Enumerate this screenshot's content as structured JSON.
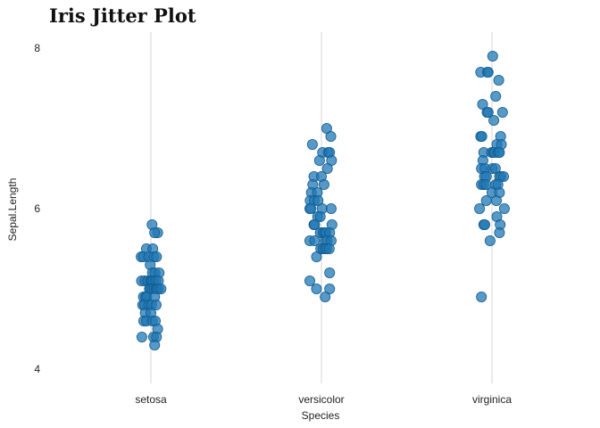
{
  "chart_data": {
    "type": "scatter",
    "subtype": "jitter",
    "title": "Iris Jitter Plot",
    "xlabel": "Species",
    "ylabel": "Sepal.Length",
    "categories": [
      "setosa",
      "versicolor",
      "virginica"
    ],
    "yticks": [
      4,
      6,
      8
    ],
    "ylim": [
      3.8,
      8.25
    ],
    "grid": {
      "vertical": true,
      "horizontal": false
    },
    "legend": "none",
    "point_color": "#1f77b4",
    "point_stroke": "#155d8f",
    "point_opacity": 0.75,
    "series": [
      {
        "category": "setosa",
        "values": [
          5.8,
          5.7,
          5.7,
          5.5,
          5.5,
          5.4,
          5.4,
          5.4,
          5.4,
          5.4,
          5.3,
          5.2,
          5.2,
          5.2,
          5.1,
          5.1,
          5.1,
          5.1,
          5.1,
          5.1,
          5.1,
          5.1,
          5.0,
          5.0,
          5.0,
          5.0,
          5.0,
          5.0,
          5.0,
          5.0,
          4.9,
          4.9,
          4.9,
          4.9,
          4.8,
          4.8,
          4.8,
          4.8,
          4.8,
          4.7,
          4.7,
          4.6,
          4.6,
          4.6,
          4.6,
          4.5,
          4.4,
          4.4,
          4.4,
          4.3
        ],
        "jitter": [
          0.03,
          0.18,
          0.1,
          -0.12,
          0.05,
          -0.26,
          -0.2,
          -0.06,
          0.08,
          0.15,
          -0.02,
          0.04,
          0.11,
          0.22,
          -0.25,
          -0.16,
          -0.08,
          0.0,
          0.02,
          0.06,
          0.13,
          0.2,
          -0.04,
          -0.01,
          0.03,
          0.09,
          0.14,
          0.16,
          0.2,
          0.27,
          -0.2,
          -0.14,
          -0.11,
          0.1,
          -0.22,
          -0.17,
          -0.06,
          0.02,
          0.14,
          -0.15,
          0.0,
          -0.19,
          -0.12,
          0.04,
          0.12,
          0.18,
          -0.24,
          0.07,
          0.15,
          0.1
        ]
      },
      {
        "category": "versicolor",
        "values": [
          7.0,
          6.9,
          6.8,
          6.7,
          6.7,
          6.7,
          6.6,
          6.6,
          6.5,
          6.4,
          6.4,
          6.3,
          6.3,
          6.2,
          6.2,
          6.1,
          6.1,
          6.1,
          6.0,
          6.0,
          6.0,
          6.0,
          5.9,
          5.9,
          5.8,
          5.8,
          5.8,
          5.7,
          5.7,
          5.7,
          5.7,
          5.7,
          5.6,
          5.6,
          5.6,
          5.6,
          5.6,
          5.5,
          5.5,
          5.5,
          5.5,
          5.5,
          5.4,
          5.2,
          5.1,
          5.0,
          5.0,
          4.9
        ],
        "jitter": [
          0.14,
          0.25,
          -0.24,
          0.03,
          0.18,
          0.22,
          -0.05,
          0.27,
          0.16,
          -0.2,
          0.0,
          -0.23,
          0.07,
          -0.27,
          -0.11,
          -0.3,
          -0.19,
          -0.09,
          -0.31,
          -0.28,
          0.02,
          0.26,
          -0.1,
          -0.03,
          -0.2,
          -0.18,
          0.28,
          -0.03,
          0.04,
          0.08,
          0.12,
          0.22,
          -0.31,
          -0.18,
          0.1,
          0.15,
          0.26,
          -0.02,
          0.04,
          0.09,
          0.14,
          0.21,
          -0.13,
          0.22,
          -0.31,
          -0.13,
          0.22,
          0.1
        ]
      },
      {
        "category": "virginica",
        "values": [
          7.9,
          7.7,
          7.7,
          7.7,
          7.6,
          7.4,
          7.3,
          7.2,
          7.2,
          7.2,
          7.1,
          6.9,
          6.9,
          6.9,
          6.8,
          6.8,
          6.7,
          6.7,
          6.7,
          6.7,
          6.7,
          6.7,
          6.6,
          6.5,
          6.5,
          6.5,
          6.5,
          6.4,
          6.4,
          6.4,
          6.4,
          6.4,
          6.3,
          6.3,
          6.3,
          6.3,
          6.3,
          6.2,
          6.2,
          6.1,
          6.1,
          6.0,
          6.0,
          5.9,
          5.8,
          5.8,
          5.8,
          5.7,
          5.6,
          4.9
        ],
        "jitter": [
          0.02,
          -0.3,
          -0.12,
          -0.1,
          0.18,
          0.1,
          -0.25,
          -0.13,
          -0.1,
          0.28,
          0.05,
          -0.3,
          -0.27,
          0.23,
          0.13,
          0.25,
          -0.22,
          -0.01,
          0.04,
          0.07,
          0.17,
          0.2,
          -0.24,
          -0.28,
          -0.19,
          0.01,
          0.09,
          -0.2,
          -0.15,
          0.2,
          0.24,
          0.31,
          -0.28,
          -0.22,
          -0.16,
          0.1,
          0.16,
          0.0,
          0.2,
          -0.15,
          0.12,
          -0.33,
          0.33,
          0.13,
          -0.22,
          -0.19,
          0.22,
          0.2,
          -0.05,
          -0.28
        ]
      }
    ]
  }
}
